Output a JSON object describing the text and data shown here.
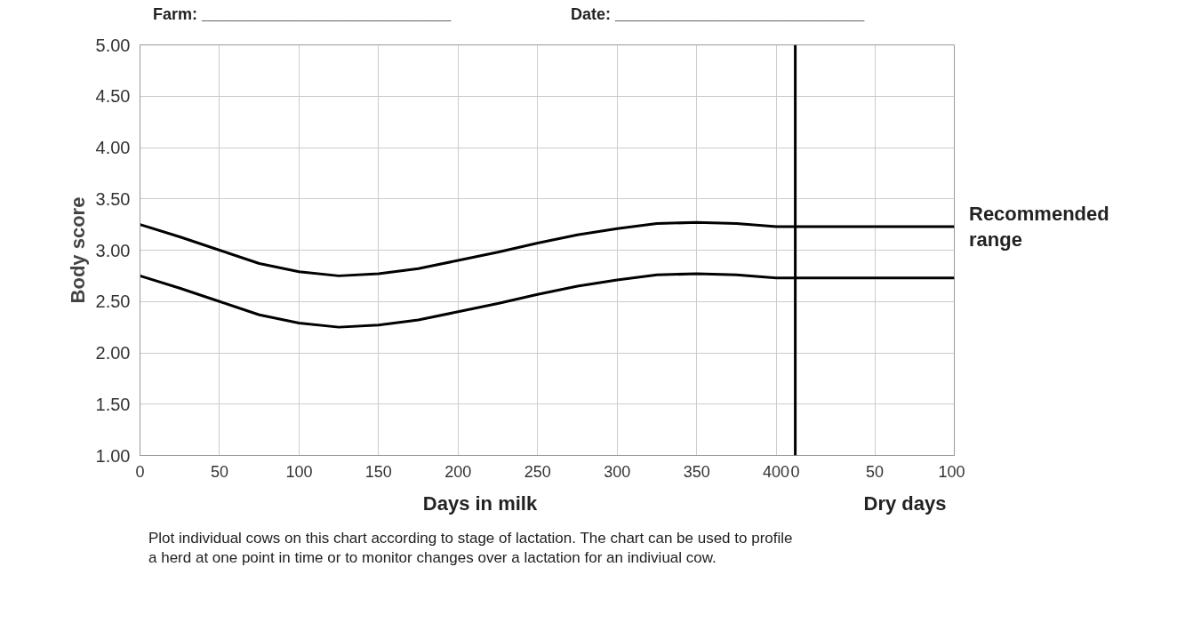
{
  "chart_data": {
    "type": "line",
    "x": [
      0,
      25,
      50,
      75,
      100,
      125,
      150,
      175,
      200,
      225,
      250,
      275,
      300,
      325,
      350,
      375,
      400,
      412,
      512
    ],
    "series": [
      {
        "color": "#000000",
        "values": [
          3.25,
          3.13,
          3.0,
          2.87,
          2.79,
          2.75,
          2.77,
          2.82,
          2.9,
          2.98,
          3.07,
          3.15,
          3.21,
          3.26,
          3.27,
          3.26,
          3.23,
          3.23,
          3.23
        ]
      },
      {
        "color": "#000000",
        "values": [
          2.75,
          2.63,
          2.5,
          2.37,
          2.29,
          2.25,
          2.27,
          2.32,
          2.4,
          2.48,
          2.57,
          2.65,
          2.71,
          2.76,
          2.77,
          2.76,
          2.73,
          2.73,
          2.73
        ]
      }
    ],
    "xlabel": "Days in milk",
    "ylabel": "Body score",
    "xlim": [
      0,
      512
    ],
    "ylim": [
      1.0,
      5.0
    ],
    "xticks": [
      0,
      50,
      100,
      150,
      200,
      250,
      300,
      350,
      400
    ],
    "x2lim": [
      -412,
      100
    ],
    "x2ticks": [
      0,
      50,
      100
    ],
    "yticks": [
      {
        "value": 1,
        "label": "1.00"
      },
      {
        "value": 1.5,
        "label": "1.50"
      },
      {
        "value": 2,
        "label": "2.00"
      },
      {
        "value": 2.5,
        "label": "2.50"
      },
      {
        "value": 3,
        "label": "3.00"
      },
      {
        "value": 3.5,
        "label": "3.50"
      },
      {
        "value": 4,
        "label": "4.00"
      },
      {
        "value": 4.5,
        "label": "4.50"
      },
      {
        "value": 5,
        "label": "5.00"
      }
    ],
    "ref_lines": [
      {
        "axis": "x",
        "value": 412,
        "color": "#000000"
      }
    ],
    "grid": true,
    "marker": "none",
    "line_style": "solid",
    "annotations": [
      "Farm: ____________________________",
      "Date: ____________________________",
      "Recommended range",
      "Dry days",
      "Plot individual cows on this chart according to stage of lactation. The chart can be used to profile a herd at one point in time or to monitor changes over a lactation for an indiviual cow."
    ]
  }
}
